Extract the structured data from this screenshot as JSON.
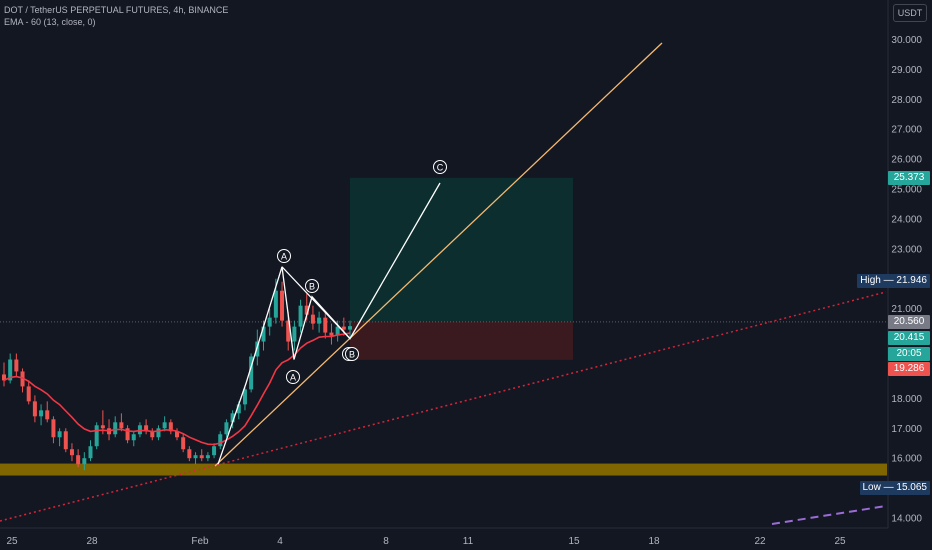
{
  "header": {
    "symbol_line": "DOT / TetherUS PERPETUAL FUTURES, 4h, BINANCE",
    "indicator_line": "EMA - 60 (13, close, 0)"
  },
  "unit_label": "USDT",
  "colors": {
    "background": "#131722",
    "up": "#26a69a",
    "down": "#ef5350",
    "ema": "#f23645",
    "support_zone": "#806600",
    "target_zone": "#0d2e2e",
    "stop_zone": "#3a1a1f",
    "trendline_orange": "#f5b971",
    "trendline_red_dotted": "#d6243a",
    "trendline_purple_dashed": "#9c6bd8",
    "wave_lines": "#ffffff"
  },
  "chart_data": {
    "type": "candlestick",
    "symbol": "DOT / TetherUS PERPETUAL FUTURES",
    "timeframe": "4h",
    "exchange": "BINANCE",
    "x_tick_labels": [
      "25",
      "28",
      "Feb",
      "4",
      "8",
      "11",
      "15",
      "18",
      "22",
      "25"
    ],
    "y_tick_labels": [
      "30.000",
      "29.000",
      "28.000",
      "27.000",
      "26.000",
      "25.000",
      "24.000",
      "23.000",
      "22.000",
      "21.000",
      "18.000",
      "17.000",
      "16.000",
      "14.000"
    ],
    "y_ticks": [
      30,
      29,
      28,
      27,
      26,
      25,
      24,
      23,
      22,
      21,
      18,
      17,
      16,
      14
    ],
    "ylim": [
      13.9,
      31.0
    ],
    "price_labels": [
      {
        "text": "25.373",
        "value": 25.373,
        "color": "#26a69a"
      },
      {
        "text": "20.560",
        "value": 20.56,
        "color": "#787b86"
      },
      {
        "text": "20.415",
        "value": 20.415,
        "color": "#26a69a"
      },
      {
        "text": "20:05",
        "value": 19.86,
        "color": "#26a69a"
      },
      {
        "text": "19.286",
        "value": 19.286,
        "color": "#ef5350"
      }
    ],
    "high_label": "High",
    "high_value": "21.946",
    "low_label": "Low",
    "low_value": "15.065",
    "wave_labels": [
      "A",
      "B",
      "C",
      "A",
      "C",
      "B"
    ],
    "position": {
      "entry": 20.56,
      "target": 25.373,
      "stop": 19.286
    },
    "support_zone": [
      15.42,
      15.82
    ],
    "waypoints": [
      {
        "label": "start",
        "value": 15.8
      },
      {
        "label": "A",
        "value": 18.5
      },
      {
        "label": "spike",
        "value": 22.4
      },
      {
        "label": "A2",
        "value": 19.3
      },
      {
        "label": "B",
        "value": 21.4
      },
      {
        "label": "pivot",
        "value": 20.0
      }
    ],
    "candles_approx": [
      [
        18.8,
        19.2,
        18.4,
        18.6
      ],
      [
        18.6,
        19.5,
        18.5,
        19.3
      ],
      [
        19.3,
        19.5,
        18.7,
        18.9
      ],
      [
        18.9,
        19.0,
        18.2,
        18.4
      ],
      [
        18.4,
        18.6,
        17.8,
        17.9
      ],
      [
        17.9,
        18.1,
        17.2,
        17.4
      ],
      [
        17.4,
        17.8,
        17.1,
        17.6
      ],
      [
        17.6,
        17.9,
        17.2,
        17.3
      ],
      [
        17.3,
        17.4,
        16.5,
        16.7
      ],
      [
        16.7,
        17.0,
        16.4,
        16.9
      ],
      [
        16.9,
        17.0,
        16.2,
        16.3
      ],
      [
        16.3,
        16.5,
        15.9,
        16.1
      ],
      [
        16.1,
        16.3,
        15.7,
        15.8
      ],
      [
        15.8,
        16.2,
        15.6,
        16.0
      ],
      [
        16.0,
        16.6,
        15.9,
        16.4
      ],
      [
        16.4,
        17.2,
        16.3,
        17.1
      ],
      [
        17.1,
        17.6,
        16.8,
        17.0
      ],
      [
        17.0,
        17.3,
        16.6,
        16.8
      ],
      [
        16.8,
        17.4,
        16.7,
        17.2
      ],
      [
        17.2,
        17.5,
        16.9,
        17.0
      ],
      [
        17.0,
        17.1,
        16.5,
        16.6
      ],
      [
        16.6,
        16.9,
        16.4,
        16.8
      ],
      [
        16.8,
        17.2,
        16.7,
        17.1
      ],
      [
        17.1,
        17.3,
        16.8,
        16.9
      ],
      [
        16.9,
        17.0,
        16.6,
        16.7
      ],
      [
        16.7,
        17.1,
        16.6,
        17.0
      ],
      [
        17.0,
        17.4,
        16.9,
        17.2
      ],
      [
        17.2,
        17.3,
        16.8,
        16.9
      ],
      [
        16.9,
        17.0,
        16.6,
        16.7
      ],
      [
        16.7,
        16.8,
        16.2,
        16.3
      ],
      [
        16.3,
        16.4,
        15.9,
        16.0
      ],
      [
        16.0,
        16.2,
        15.8,
        16.1
      ],
      [
        16.1,
        16.3,
        15.9,
        16.0
      ],
      [
        16.0,
        16.2,
        15.9,
        16.1
      ],
      [
        16.1,
        16.5,
        16.0,
        16.4
      ],
      [
        16.4,
        16.9,
        16.3,
        16.8
      ],
      [
        16.8,
        17.3,
        16.7,
        17.2
      ],
      [
        17.2,
        17.6,
        17.0,
        17.5
      ],
      [
        17.5,
        17.9,
        17.3,
        17.8
      ],
      [
        17.8,
        18.4,
        17.6,
        18.3
      ],
      [
        18.3,
        19.5,
        18.2,
        19.4
      ],
      [
        19.4,
        20.3,
        19.1,
        19.9
      ],
      [
        19.9,
        20.6,
        19.6,
        20.4
      ],
      [
        20.4,
        21.0,
        20.1,
        20.7
      ],
      [
        20.7,
        22.0,
        20.5,
        21.6
      ],
      [
        21.6,
        21.9,
        20.4,
        20.6
      ],
      [
        20.6,
        20.9,
        19.6,
        19.9
      ],
      [
        19.9,
        20.6,
        19.6,
        20.4
      ],
      [
        20.4,
        21.3,
        20.2,
        21.1
      ],
      [
        21.1,
        21.5,
        20.6,
        20.8
      ],
      [
        20.8,
        21.1,
        20.3,
        20.5
      ],
      [
        20.5,
        20.9,
        20.2,
        20.7
      ],
      [
        20.7,
        20.9,
        20.0,
        20.2
      ],
      [
        20.2,
        20.5,
        19.8,
        20.1
      ],
      [
        20.1,
        20.6,
        19.9,
        20.4
      ],
      [
        20.4,
        20.7,
        20.1,
        20.3
      ],
      [
        20.3,
        20.6,
        20.0,
        20.415
      ]
    ]
  }
}
